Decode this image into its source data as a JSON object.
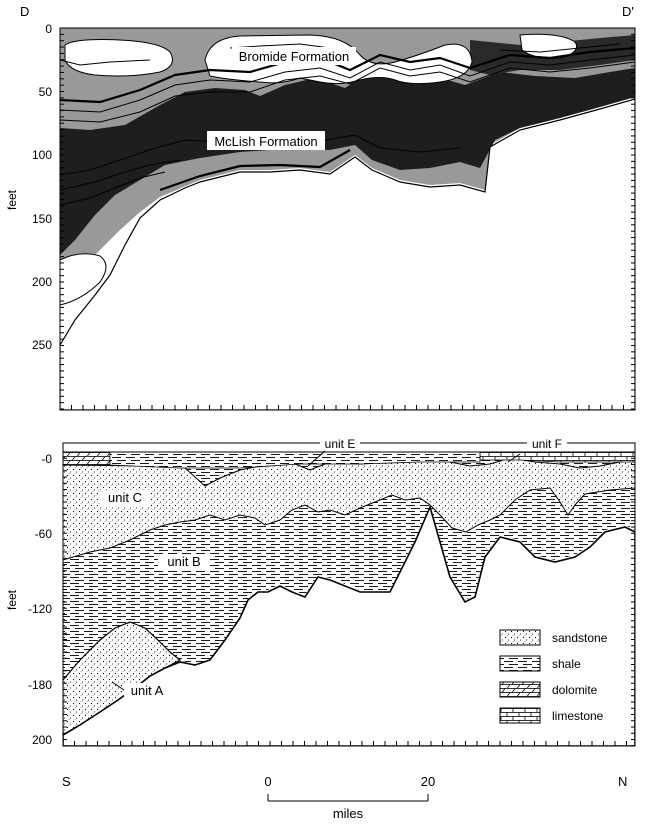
{
  "top_panel": {
    "left_label": "D",
    "right_label": "D'",
    "y_axis_label": "feet",
    "y_ticks": [
      "0",
      "50",
      "100",
      "150",
      "200",
      "250"
    ],
    "formation_labels": {
      "bromide": "Bromide Formation",
      "mclish": "McLish Formation"
    }
  },
  "bottom_panel": {
    "y_axis_label": "feet",
    "y_ticks": [
      "-0",
      "-60",
      "-120",
      "-180",
      "200"
    ],
    "unit_labels": {
      "unit_a": "unit A",
      "unit_b": "unit B",
      "unit_c": "unit C",
      "unit_e": "unit E",
      "unit_f": "unit F"
    },
    "legend": [
      {
        "pattern": "sandstone",
        "label": "sandstone"
      },
      {
        "pattern": "shale",
        "label": "shale"
      },
      {
        "pattern": "dolomite",
        "label": "dolomite"
      },
      {
        "pattern": "limestone",
        "label": "limestone"
      }
    ]
  },
  "bottom_axis": {
    "left_label": "S",
    "right_label": "N",
    "scale_start": "0",
    "scale_end": "20",
    "scale_unit": "miles"
  }
}
